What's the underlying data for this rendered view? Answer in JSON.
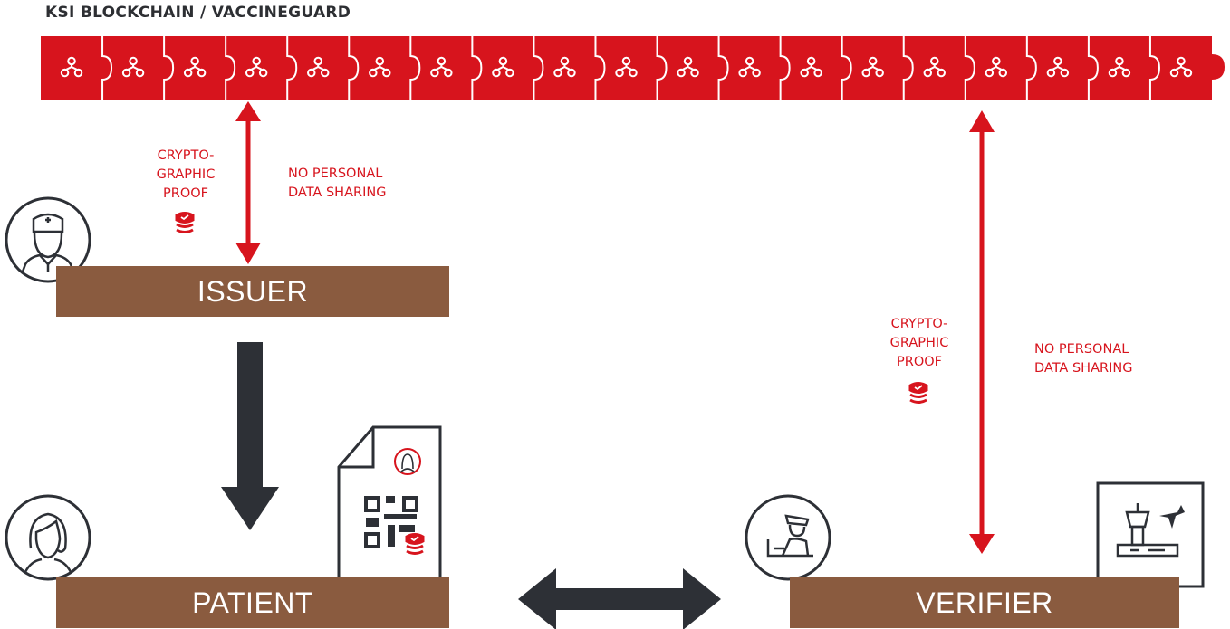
{
  "header": {
    "title": "KSI BLOCKCHAIN / VACCINEGUARD"
  },
  "colors": {
    "red": "#d7141d",
    "brown": "#8a5b3f",
    "dark": "#2d3036"
  },
  "blockchain": {
    "block_count": 19,
    "block_icon": "node-tree-icon"
  },
  "issuer": {
    "label": "ISSUER",
    "icon": "doctor-icon",
    "proof_line1": "CRYPTO-",
    "proof_line2": "GRAPHIC",
    "proof_line3": "PROOF",
    "privacy_line1": "NO PERSONAL",
    "privacy_line2": "DATA SHARING"
  },
  "patient": {
    "label": "PATIENT",
    "icon": "woman-icon",
    "document_icon": "qr-certificate-icon"
  },
  "verifier": {
    "label": "VERIFIER",
    "icon": "officer-icon",
    "location_icon": "airport-icon",
    "proof_line1": "CRYPTO-",
    "proof_line2": "GRAPHIC",
    "proof_line3": "PROOF",
    "privacy_line1": "NO PERSONAL",
    "privacy_line2": "DATA SHARING"
  }
}
